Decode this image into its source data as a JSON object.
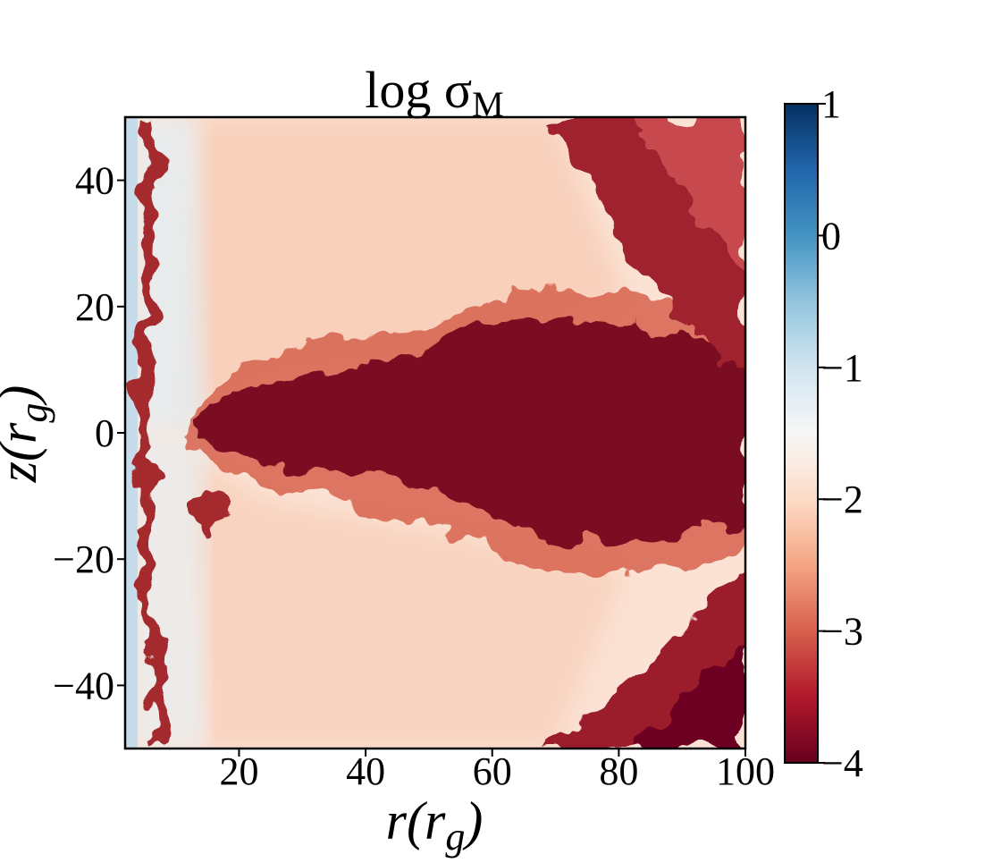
{
  "chart_data": {
    "type": "heatmap",
    "title": {
      "main": "log σ",
      "subscript": "M"
    },
    "xlabel": {
      "main": "r(r",
      "subscript": "g",
      "end": ")"
    },
    "ylabel": {
      "main": "z(r",
      "subscript": "g",
      "end": ")"
    },
    "xlim": [
      2,
      100
    ],
    "xticks": [
      20,
      40,
      60,
      80,
      100
    ],
    "ylim": [
      -50,
      50
    ],
    "yticks": [
      {
        "value": -40,
        "label": "−40"
      },
      {
        "value": -20,
        "label": "−20"
      },
      0,
      20,
      40
    ],
    "colorbar": {
      "lim": [
        -4,
        1
      ],
      "ticks": [
        {
          "value": -4,
          "label": "−4"
        },
        {
          "value": -3,
          "label": "−3"
        },
        {
          "value": -2,
          "label": "−2"
        },
        {
          "value": -1,
          "label": "−1"
        },
        0,
        1
      ],
      "colormap": "RdBu",
      "colors": [
        "#67001f",
        "#b2182b",
        "#d6604d",
        "#f4a582",
        "#fddbc7",
        "#f7f7f7",
        "#d1e5f0",
        "#92c5de",
        "#4393c3",
        "#2166ac",
        "#053061"
      ]
    }
  }
}
